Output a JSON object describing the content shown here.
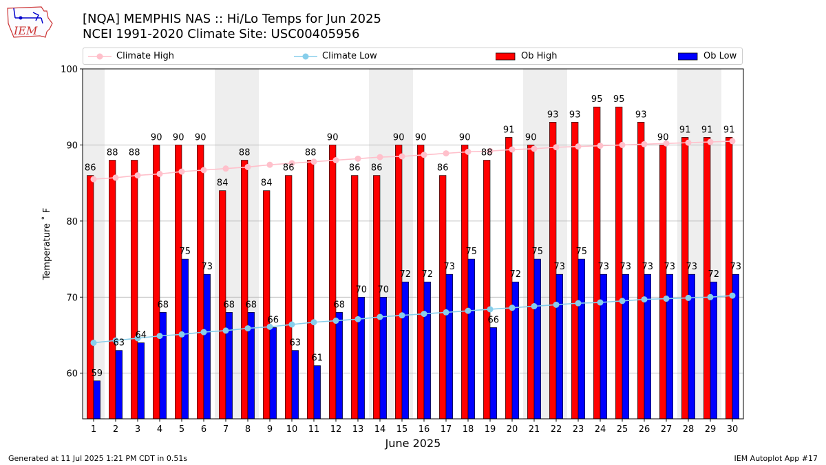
{
  "header": {
    "logo_text": "IEM",
    "title_line1": "[NQA] MEMPHIS NAS :: Hi/Lo Temps for Jun 2025",
    "title_line2": "NCEI 1991-2020 Climate Site: USC00405956"
  },
  "legend": {
    "climate_high": "Climate High",
    "climate_low": "Climate Low",
    "ob_high": "Ob High",
    "ob_low": "Ob Low"
  },
  "footer": {
    "generated": "Generated at 11 Jul 2025 1:21 PM CDT in 0.51s",
    "app": "IEM Autoplot App #17"
  },
  "colors": {
    "ob_high": "#ff0000",
    "ob_low": "#0000ff",
    "climate_high": "#ffc0cb",
    "climate_low": "#87ceeb",
    "weekend_shade": "#eeeeee"
  },
  "chart_data": {
    "type": "bar",
    "xlabel": "June 2025",
    "ylabel": "Temperature ˚ F",
    "ylim": [
      54,
      100
    ],
    "yticks": [
      60,
      70,
      80,
      90,
      100
    ],
    "grid": "horizontal",
    "legend_placement": "top",
    "categories": [
      "1",
      "2",
      "3",
      "4",
      "5",
      "6",
      "7",
      "8",
      "9",
      "10",
      "11",
      "12",
      "13",
      "14",
      "15",
      "16",
      "17",
      "18",
      "19",
      "20",
      "21",
      "22",
      "23",
      "24",
      "25",
      "26",
      "27",
      "28",
      "29",
      "30"
    ],
    "shaded_days": [
      1,
      7,
      8,
      14,
      15,
      21,
      22,
      28,
      29
    ],
    "series": [
      {
        "name": "Ob High",
        "kind": "bar",
        "values": [
          86,
          88,
          88,
          90,
          90,
          90,
          84,
          88,
          84,
          86,
          88,
          90,
          86,
          86,
          90,
          90,
          86,
          90,
          88,
          91,
          90,
          93,
          93,
          95,
          95,
          93,
          90,
          91,
          91,
          91
        ]
      },
      {
        "name": "Ob Low",
        "kind": "bar",
        "values": [
          59,
          63,
          64,
          68,
          75,
          73,
          68,
          68,
          66,
          63,
          61,
          68,
          70,
          70,
          72,
          72,
          73,
          75,
          66,
          72,
          75,
          73,
          75,
          73,
          73,
          73,
          73,
          73,
          72,
          73
        ]
      },
      {
        "name": "Climate High",
        "kind": "line",
        "values": [
          85.5,
          85.7,
          86.0,
          86.2,
          86.5,
          86.7,
          86.9,
          87.1,
          87.4,
          87.6,
          87.8,
          88.0,
          88.2,
          88.4,
          88.5,
          88.7,
          88.9,
          89.1,
          89.2,
          89.4,
          89.5,
          89.7,
          89.8,
          89.9,
          90.0,
          90.1,
          90.2,
          90.3,
          90.4,
          90.5
        ]
      },
      {
        "name": "Climate Low",
        "kind": "line",
        "values": [
          64.0,
          64.3,
          64.6,
          64.9,
          65.1,
          65.4,
          65.6,
          65.9,
          66.1,
          66.4,
          66.7,
          66.9,
          67.1,
          67.4,
          67.6,
          67.8,
          68.0,
          68.2,
          68.4,
          68.6,
          68.8,
          69.0,
          69.2,
          69.3,
          69.5,
          69.7,
          69.8,
          69.9,
          70.0,
          70.2
        ]
      }
    ]
  }
}
